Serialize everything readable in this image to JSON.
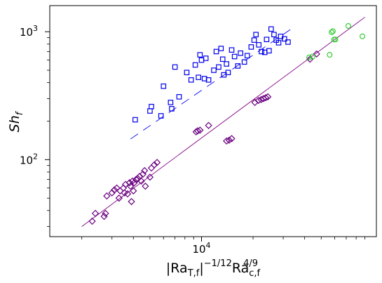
{
  "chart_data": {
    "type": "scatter",
    "xscale": "log",
    "yscale": "log",
    "xlim": [
      1300,
      105000
    ],
    "ylim": [
      25,
      1600
    ],
    "xticks": [
      {
        "value": 10000,
        "base": "10",
        "exp": "4"
      }
    ],
    "yticks": [
      {
        "value": 100,
        "base": "10",
        "exp": "2"
      },
      {
        "value": 1000,
        "base": "10",
        "exp": "3"
      }
    ],
    "xlabel": {
      "pre": "|Ra",
      "sub1": "T,f",
      "mid": "|",
      "sup1": "−1/12",
      "ra": "Ra",
      "sub2": "c,f",
      "sup2": "4/9"
    },
    "ylabel": {
      "main": "Sh",
      "sub": "f"
    },
    "grid": false,
    "legend": "none",
    "series": [
      {
        "marker": "square",
        "color": "#0000ee",
        "points": [
          [
            4100,
            205
          ],
          [
            5000,
            240
          ],
          [
            5100,
            260
          ],
          [
            5800,
            220
          ],
          [
            6000,
            375
          ],
          [
            6600,
            280
          ],
          [
            6700,
            250
          ],
          [
            7000,
            530
          ],
          [
            7400,
            310
          ],
          [
            8200,
            480
          ],
          [
            8700,
            420
          ],
          [
            9200,
            550
          ],
          [
            9600,
            440
          ],
          [
            9800,
            660
          ],
          [
            10000,
            600
          ],
          [
            10400,
            430
          ],
          [
            10600,
            620
          ],
          [
            11000,
            420
          ],
          [
            11800,
            500
          ],
          [
            12200,
            700
          ],
          [
            12600,
            530
          ],
          [
            13000,
            740
          ],
          [
            13300,
            610
          ],
          [
            13500,
            460
          ],
          [
            14000,
            560
          ],
          [
            14300,
            480
          ],
          [
            15000,
            720
          ],
          [
            15600,
            640
          ],
          [
            16300,
            540
          ],
          [
            16900,
            680
          ],
          [
            17800,
            580
          ],
          [
            18500,
            650
          ],
          [
            19500,
            760
          ],
          [
            20300,
            860
          ],
          [
            20800,
            950
          ],
          [
            21600,
            790
          ],
          [
            22400,
            700
          ],
          [
            23400,
            690
          ],
          [
            24000,
            870
          ],
          [
            24800,
            710
          ],
          [
            25500,
            1050
          ],
          [
            26500,
            950
          ],
          [
            27300,
            860
          ],
          [
            28200,
            820
          ],
          [
            29000,
            920
          ],
          [
            30500,
            880
          ],
          [
            32000,
            830
          ]
        ]
      },
      {
        "marker": "diamond",
        "color": "#6a0080",
        "points": [
          [
            2300,
            33
          ],
          [
            2400,
            38
          ],
          [
            2700,
            36
          ],
          [
            2750,
            38
          ],
          [
            2800,
            52
          ],
          [
            3000,
            55
          ],
          [
            3100,
            58
          ],
          [
            3200,
            60
          ],
          [
            3300,
            50
          ],
          [
            3350,
            57
          ],
          [
            3500,
            60
          ],
          [
            3550,
            55
          ],
          [
            3600,
            64
          ],
          [
            3700,
            54
          ],
          [
            3800,
            66
          ],
          [
            3850,
            62
          ],
          [
            3900,
            47
          ],
          [
            3950,
            68
          ],
          [
            4000,
            57
          ],
          [
            4050,
            66
          ],
          [
            4150,
            70
          ],
          [
            4250,
            71
          ],
          [
            4350,
            74
          ],
          [
            4450,
            68
          ],
          [
            4550,
            77
          ],
          [
            4650,
            82
          ],
          [
            4700,
            62
          ],
          [
            5000,
            73
          ],
          [
            5100,
            86
          ],
          [
            5300,
            91
          ],
          [
            5500,
            95
          ],
          [
            9300,
            165
          ],
          [
            9500,
            168
          ],
          [
            9800,
            170
          ],
          [
            11000,
            185
          ],
          [
            14000,
            140
          ],
          [
            14500,
            142
          ],
          [
            15000,
            146
          ],
          [
            20500,
            280
          ],
          [
            21500,
            290
          ],
          [
            22300,
            295
          ],
          [
            23000,
            300
          ],
          [
            23700,
            305
          ],
          [
            24400,
            310
          ],
          [
            43000,
            610
          ],
          [
            47000,
            670
          ]
        ]
      },
      {
        "marker": "circle",
        "color": "#33cc33",
        "points": [
          [
            42500,
            630
          ],
          [
            44500,
            640
          ],
          [
            56000,
            660
          ],
          [
            57500,
            990
          ],
          [
            58500,
            1010
          ],
          [
            59500,
            870
          ],
          [
            60500,
            870
          ],
          [
            72000,
            1110
          ],
          [
            87000,
            920
          ]
        ]
      }
    ],
    "fits": [
      {
        "color": "#0000ee",
        "style": "dashed",
        "x": [
          3850,
          33000
        ],
        "y": [
          145,
          1040
        ]
      },
      {
        "color": "#800080",
        "style": "solid",
        "x": [
          2000,
          90000
        ],
        "y": [
          30,
          1300
        ]
      }
    ]
  }
}
